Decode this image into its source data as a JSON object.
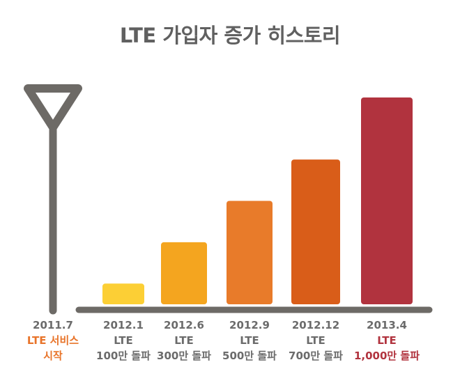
{
  "chart_data": {
    "type": "bar",
    "title": "LTE 가입자 증가 히스토리",
    "start": {
      "lines": [
        "2011.7",
        "LTE 서비스",
        "시작"
      ],
      "line_colors": [
        "#6b6b6b",
        "#e8742a",
        "#e8742a"
      ]
    },
    "categories": [
      "2012.1",
      "2012.6",
      "2012.9",
      "2012.12",
      "2013.4"
    ],
    "values": [
      100,
      300,
      500,
      700,
      1000
    ],
    "unit": "만",
    "labels": [
      [
        "2012.1",
        "LTE",
        "100만 돌파"
      ],
      [
        "2012.6",
        "LTE",
        "300만 돌파"
      ],
      [
        "2012.9",
        "LTE",
        "500만 돌파"
      ],
      [
        "2012.12",
        "LTE",
        "700만 돌파"
      ],
      [
        "2013.4",
        "LTE",
        "1,000만 돌파"
      ]
    ],
    "bar_colors": [
      "#fccf35",
      "#f4a51f",
      "#e87b2a",
      "#d95d19",
      "#b1333e"
    ],
    "label_colors": [
      [
        "#6b6b6b",
        "#6b6b6b",
        "#6b6b6b"
      ],
      [
        "#6b6b6b",
        "#6b6b6b",
        "#6b6b6b"
      ],
      [
        "#6b6b6b",
        "#6b6b6b",
        "#6b6b6b"
      ],
      [
        "#6b6b6b",
        "#6b6b6b",
        "#6b6b6b"
      ],
      [
        "#6b6b6b",
        "#b1333e",
        "#b1333e"
      ]
    ],
    "axis_color": "#6d6a66",
    "xlabel": "",
    "ylabel": ""
  }
}
